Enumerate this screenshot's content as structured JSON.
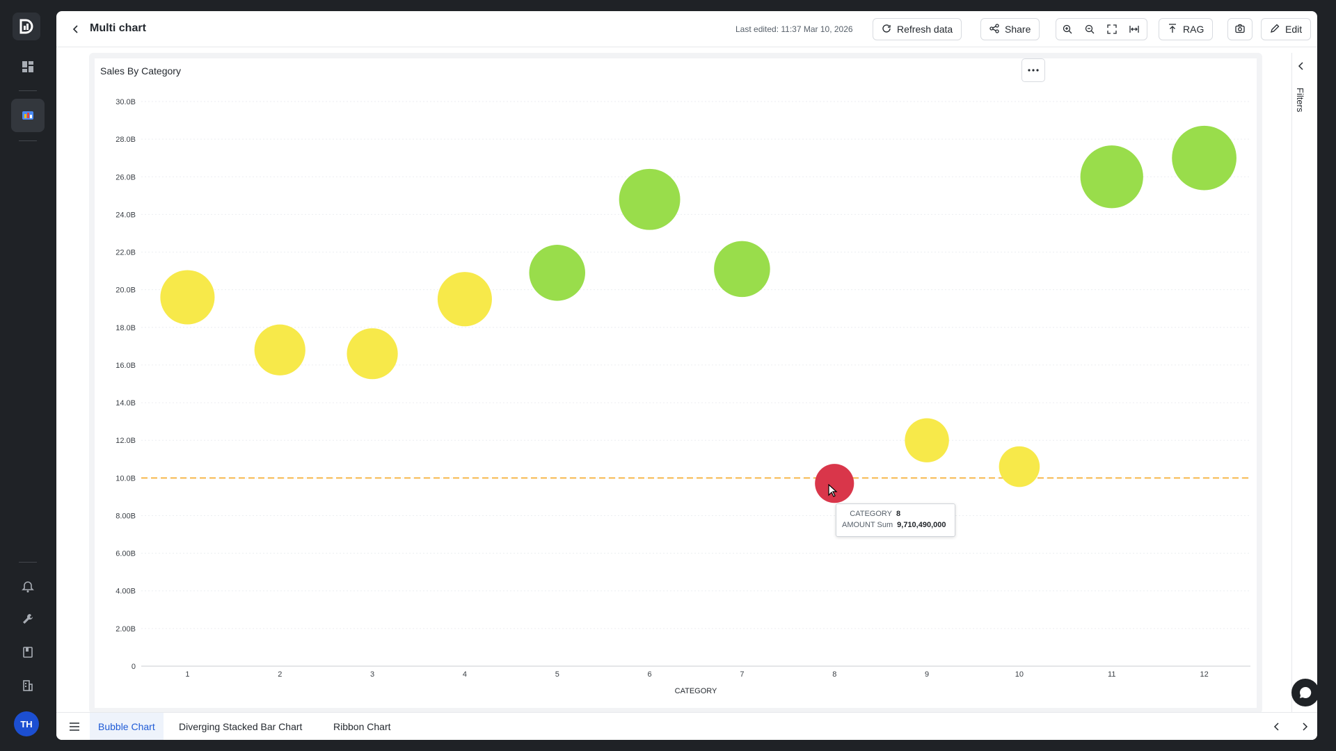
{
  "header": {
    "title": "Multi chart",
    "last_edited": "Last edited: 11:37 Mar 10, 2026",
    "refresh_label": "Refresh data",
    "share_label": "Share",
    "rag_label": "RAG",
    "edit_label": "Edit"
  },
  "rail": {
    "avatar_initials": "TH",
    "icons": [
      "logo-icon",
      "dashboard-icon",
      "chart-board-icon",
      "bell-icon",
      "wrench-icon",
      "book-icon",
      "building-icon"
    ]
  },
  "filters": {
    "label": "Filters"
  },
  "tabs": [
    {
      "label": "Bubble Chart",
      "active": true
    },
    {
      "label": "Diverging Stacked Bar Chart",
      "active": false
    },
    {
      "label": "Ribbon Chart",
      "active": false
    }
  ],
  "tooltip": {
    "category_key": "CATEGORY",
    "category_value": "8",
    "amount_key": "AMOUNT Sum",
    "amount_value": "9,710,490,000"
  },
  "colors": {
    "green": "#99dd4b",
    "yellow": "#f7e94a",
    "red": "#d9364a",
    "reference_line": "#f6b64b",
    "accent": "#1f5bd6"
  },
  "chart_data": {
    "type": "scatter",
    "title": "Sales By Category",
    "xlabel": "CATEGORY",
    "ylabel": "",
    "categories": [
      "1",
      "2",
      "3",
      "4",
      "5",
      "6",
      "7",
      "8",
      "9",
      "10",
      "11",
      "12"
    ],
    "values": [
      19.6,
      16.8,
      16.6,
      19.5,
      20.9,
      24.8,
      21.1,
      9.71,
      12.0,
      10.6,
      26.0,
      27.0
    ],
    "bubble_size": [
      32,
      30,
      30,
      32,
      33,
      36,
      33,
      23,
      26,
      24,
      37,
      38
    ],
    "bubble_color": [
      "yellow",
      "yellow",
      "yellow",
      "yellow",
      "green",
      "green",
      "green",
      "red",
      "yellow",
      "yellow",
      "green",
      "green"
    ],
    "ylim": [
      0,
      30
    ],
    "yticks": [
      0,
      2,
      4,
      6,
      8,
      10,
      12,
      14,
      16,
      18,
      20,
      22,
      24,
      26,
      28,
      30
    ],
    "ytick_labels": [
      "0",
      "2.00B",
      "4.00B",
      "6.00B",
      "8.00B",
      "10.0B",
      "12.0B",
      "14.0B",
      "16.0B",
      "18.0B",
      "20.0B",
      "22.0B",
      "24.0B",
      "26.0B",
      "28.0B",
      "30.0B"
    ],
    "reference_line": 10,
    "grid": true,
    "legend": "none"
  }
}
